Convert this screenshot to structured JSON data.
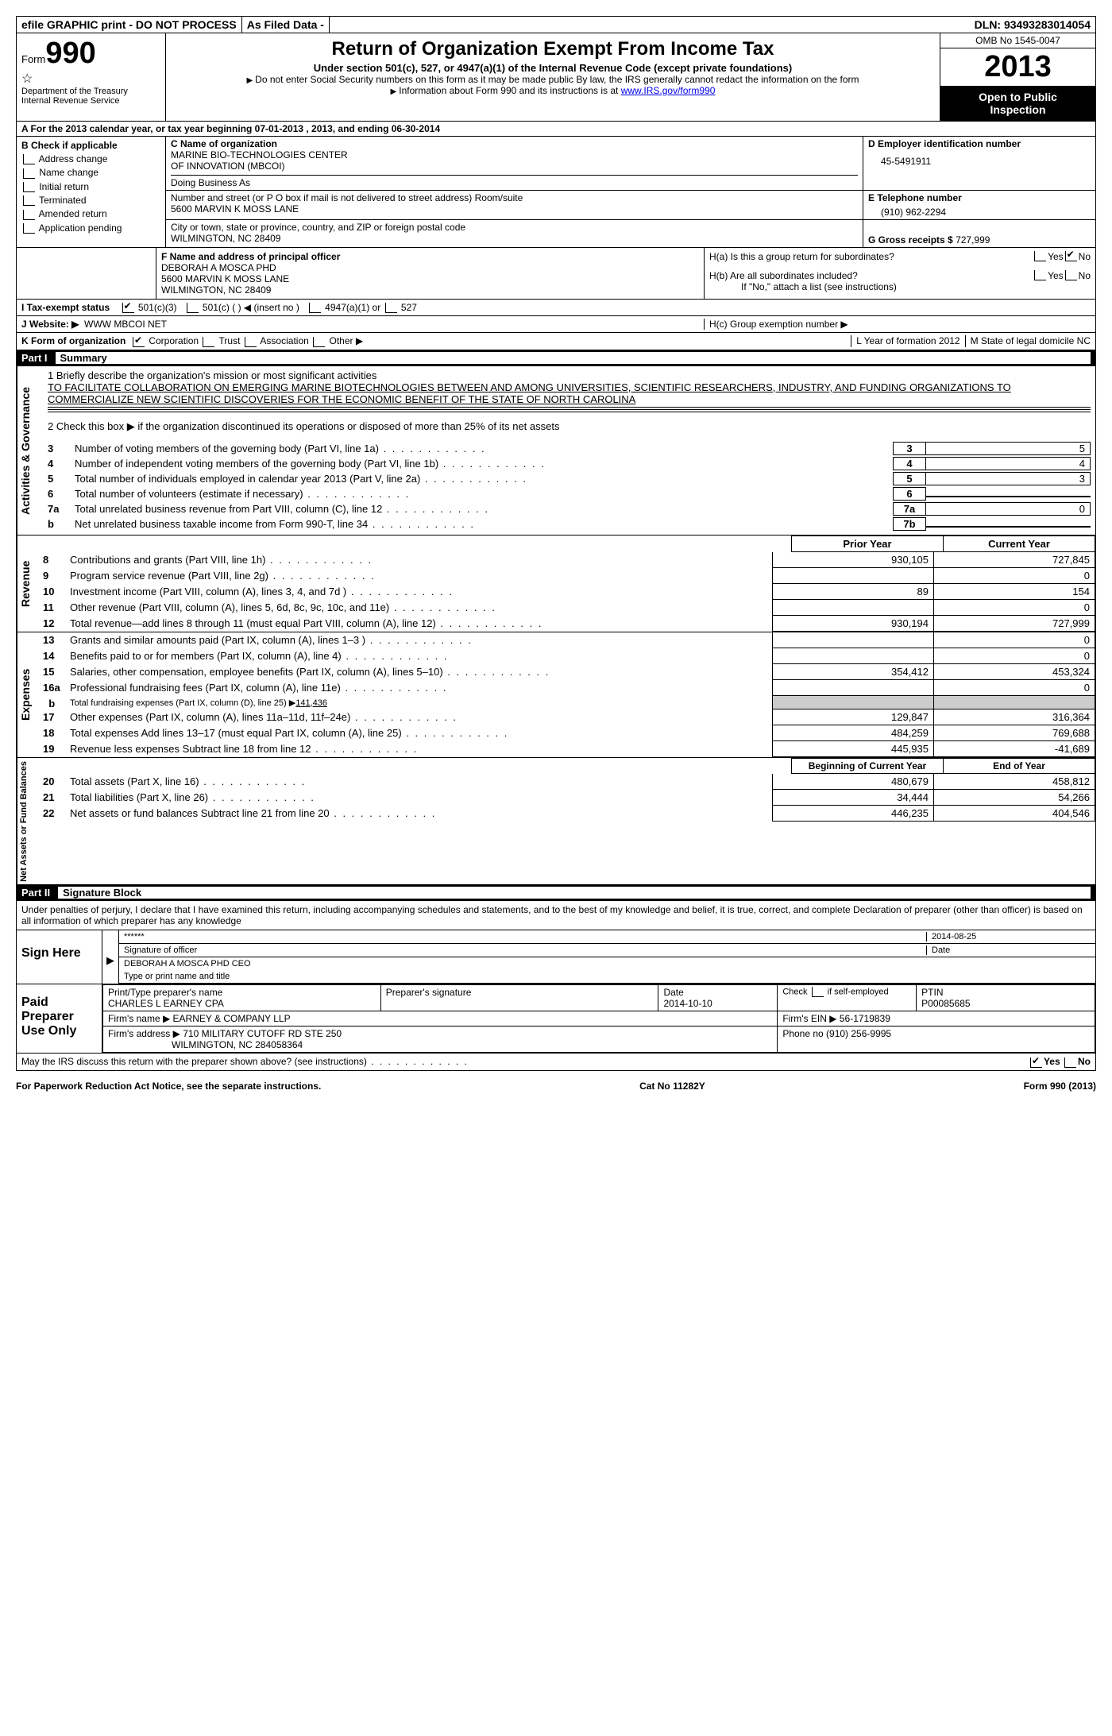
{
  "topbar": {
    "efile": "efile GRAPHIC print - DO NOT PROCESS",
    "asfiled": "As Filed Data -",
    "dln_label": "DLN:",
    "dln": "93493283014054"
  },
  "header": {
    "form_label": "Form",
    "form_no": "990",
    "dept1": "Department of the Treasury",
    "dept2": "Internal Revenue Service",
    "title": "Return of Organization Exempt From Income Tax",
    "sub1": "Under section 501(c), 527, or 4947(a)(1) of the Internal Revenue Code (except private foundations)",
    "sub2": "Do not enter Social Security numbers on this form as it may be made public  By law, the IRS generally cannot redact the information on the form",
    "sub3": "Information about Form 990 and its instructions is at ",
    "irs_link": "www.IRS.gov/form990",
    "omb": "OMB No  1545-0047",
    "year": "2013",
    "open1": "Open to Public",
    "open2": "Inspection"
  },
  "rowA": "A  For the 2013 calendar year, or tax year beginning 07-01-2013     , 2013, and ending 06-30-2014",
  "colB": {
    "head": "B  Check if applicable",
    "items": [
      "Address change",
      "Name change",
      "Initial return",
      "Terminated",
      "Amended return",
      "Application pending"
    ]
  },
  "C": {
    "label_name": "C Name of organization",
    "name1": "MARINE BIO-TECHNOLOGIES CENTER",
    "name2": "OF INNOVATION (MBCOI)",
    "dba": "Doing Business As",
    "label_addr": "Number and street (or P O  box if mail is not delivered to street address)   Room/suite",
    "addr": "5600 MARVIN K MOSS LANE",
    "label_city": "City or town, state or province, country, and ZIP or foreign postal code",
    "city": "WILMINGTON, NC  28409"
  },
  "D": {
    "label": "D Employer identification number",
    "val": "45-5491911"
  },
  "E": {
    "label": "E Telephone number",
    "val": "(910) 962-2294"
  },
  "G": {
    "label": "G Gross receipts $",
    "val": "727,999"
  },
  "F": {
    "label": "F  Name and address of principal officer",
    "l1": "DEBORAH A MOSCA PHD",
    "l2": "5600 MARVIN K MOSS LANE",
    "l3": "WILMINGTON, NC  28409"
  },
  "H": {
    "a": "H(a)  Is this a group return for subordinates?",
    "b": "H(b)  Are all subordinates included?",
    "b2": "If \"No,\" attach a list  (see instructions)",
    "c": "H(c)   Group exemption number ▶",
    "yes": "Yes",
    "no": "No"
  },
  "I": {
    "label": "I   Tax-exempt status",
    "o1": "501(c)(3)",
    "o2": "501(c) (   ) ◀ (insert no )",
    "o3": "4947(a)(1) or",
    "o4": "527"
  },
  "J": {
    "label": "J   Website: ▶",
    "val": "WWW MBCOI NET"
  },
  "K": {
    "label": "K Form of organization",
    "o1": "Corporation",
    "o2": "Trust",
    "o3": "Association",
    "o4": "Other ▶",
    "L": "L  Year of formation  2012",
    "M": "M State of legal domicile   NC"
  },
  "partI": {
    "num": "Part I",
    "title": "Summary"
  },
  "summary": {
    "l1_label": "1   Briefly describe the organization's mission or most significant activities",
    "mission": "TO FACILITATE COLLABORATION ON EMERGING MARINE BIOTECHNOLOGIES BETWEEN AND AMONG UNIVERSITIES, SCIENTIFIC RESEARCHERS, INDUSTRY, AND FUNDING ORGANIZATIONS TO COMMERCIALIZE NEW SCIENTIFIC DISCOVERIES FOR THE ECONOMIC BENEFIT OF THE STATE OF NORTH CAROLINA",
    "l2": "2   Check this box ▶     if the organization discontinued its operations or disposed of more than 25% of its net assets",
    "rows_num": [
      {
        "n": "3",
        "d": "Number of voting members of the governing body (Part VI, line 1a)",
        "box": "3",
        "v": "5"
      },
      {
        "n": "4",
        "d": "Number of independent voting members of the governing body (Part VI, line 1b)",
        "box": "4",
        "v": "4"
      },
      {
        "n": "5",
        "d": "Total number of individuals employed in calendar year 2013 (Part V, line 2a)",
        "box": "5",
        "v": "3"
      },
      {
        "n": "6",
        "d": "Total number of volunteers (estimate if necessary)",
        "box": "6",
        "v": ""
      },
      {
        "n": "7a",
        "d": "Total unrelated business revenue from Part VIII, column (C), line 12",
        "box": "7a",
        "v": "0"
      },
      {
        "n": "b",
        "d": "Net unrelated business taxable income from Form 990-T, line 34",
        "box": "7b",
        "v": ""
      }
    ],
    "head_prior": "Prior Year",
    "head_curr": "Current Year",
    "rev_rows": [
      {
        "n": "8",
        "d": "Contributions and grants (Part VIII, line 1h)",
        "p": "930,105",
        "c": "727,845"
      },
      {
        "n": "9",
        "d": "Program service revenue (Part VIII, line 2g)",
        "p": "",
        "c": "0"
      },
      {
        "n": "10",
        "d": "Investment income (Part VIII, column (A), lines 3, 4, and 7d )",
        "p": "89",
        "c": "154"
      },
      {
        "n": "11",
        "d": "Other revenue (Part VIII, column (A), lines 5, 6d, 8c, 9c, 10c, and 11e)",
        "p": "",
        "c": "0"
      },
      {
        "n": "12",
        "d": "Total revenue—add lines 8 through 11 (must equal Part VIII, column (A), line 12)",
        "p": "930,194",
        "c": "727,999"
      }
    ],
    "exp_rows": [
      {
        "n": "13",
        "d": "Grants and similar amounts paid (Part IX, column (A), lines 1–3 )",
        "p": "",
        "c": "0"
      },
      {
        "n": "14",
        "d": "Benefits paid to or for members (Part IX, column (A), line 4)",
        "p": "",
        "c": "0"
      },
      {
        "n": "15",
        "d": "Salaries, other compensation, employee benefits (Part IX, column (A), lines 5–10)",
        "p": "354,412",
        "c": "453,324"
      },
      {
        "n": "16a",
        "d": "Professional fundraising fees (Part IX, column (A), line 11e)",
        "p": "",
        "c": "0"
      }
    ],
    "l16b": "Total fundraising expenses (Part IX, column (D), line 25) ▶",
    "l16b_val": "141,436",
    "exp_rows2": [
      {
        "n": "17",
        "d": "Other expenses (Part IX, column (A), lines 11a–11d, 11f–24e)",
        "p": "129,847",
        "c": "316,364"
      },
      {
        "n": "18",
        "d": "Total expenses  Add lines 13–17 (must equal Part IX, column (A), line 25)",
        "p": "484,259",
        "c": "769,688"
      },
      {
        "n": "19",
        "d": "Revenue less expenses  Subtract line 18 from line 12",
        "p": "445,935",
        "c": "-41,689"
      }
    ],
    "na_head1": "Beginning of Current Year",
    "na_head2": "End of Year",
    "na_rows": [
      {
        "n": "20",
        "d": "Total assets (Part X, line 16)",
        "p": "480,679",
        "c": "458,812"
      },
      {
        "n": "21",
        "d": "Total liabilities (Part X, line 26)",
        "p": "34,444",
        "c": "54,266"
      },
      {
        "n": "22",
        "d": "Net assets or fund balances  Subtract line 21 from line 20",
        "p": "446,235",
        "c": "404,546"
      }
    ],
    "side1": "Activities & Governance",
    "side2": "Revenue",
    "side3": "Expenses",
    "side4": "Net Assets or Fund Balances"
  },
  "partII": {
    "num": "Part II",
    "title": "Signature Block"
  },
  "perjury": "Under penalties of perjury, I declare that I have examined this return, including accompanying schedules and statements, and to the best of my knowledge and belief, it is true, correct, and complete  Declaration of preparer (other than officer) is based on all information of which preparer has any knowledge",
  "sign": {
    "here": "Sign Here",
    "stars": "******",
    "sig_of": "Signature of officer",
    "date_lbl": "Date",
    "date": "2014-08-25",
    "name": "DEBORAH A MOSCA PHD CEO",
    "name_lbl": "Type or print name and title"
  },
  "paid": {
    "label": "Paid Preparer Use Only",
    "prep_name_lbl": "Print/Type preparer's name",
    "prep_name": "CHARLES L EARNEY CPA",
    "prep_sig_lbl": "Preparer's signature",
    "date_lbl": "Date",
    "date": "2014-10-10",
    "check_lbl": "Check     if self-employed",
    "ptin_lbl": "PTIN",
    "ptin": "P00085685",
    "firm_name_lbl": "Firm's name   ▶",
    "firm_name": "EARNEY & COMPANY LLP",
    "firm_ein_lbl": "Firm's EIN ▶",
    "firm_ein": "56-1719839",
    "firm_addr_lbl": "Firm's address ▶",
    "firm_addr1": "710 MILITARY CUTOFF RD STE 250",
    "firm_addr2": "WILMINGTON, NC  284058364",
    "phone_lbl": "Phone no  (910) 256-9995"
  },
  "discuss": "May the IRS discuss this return with the preparer shown above? (see instructions)",
  "footer": {
    "l": "For Paperwork Reduction Act Notice, see the separate instructions.",
    "c": "Cat No  11282Y",
    "r": "Form 990 (2013)"
  }
}
